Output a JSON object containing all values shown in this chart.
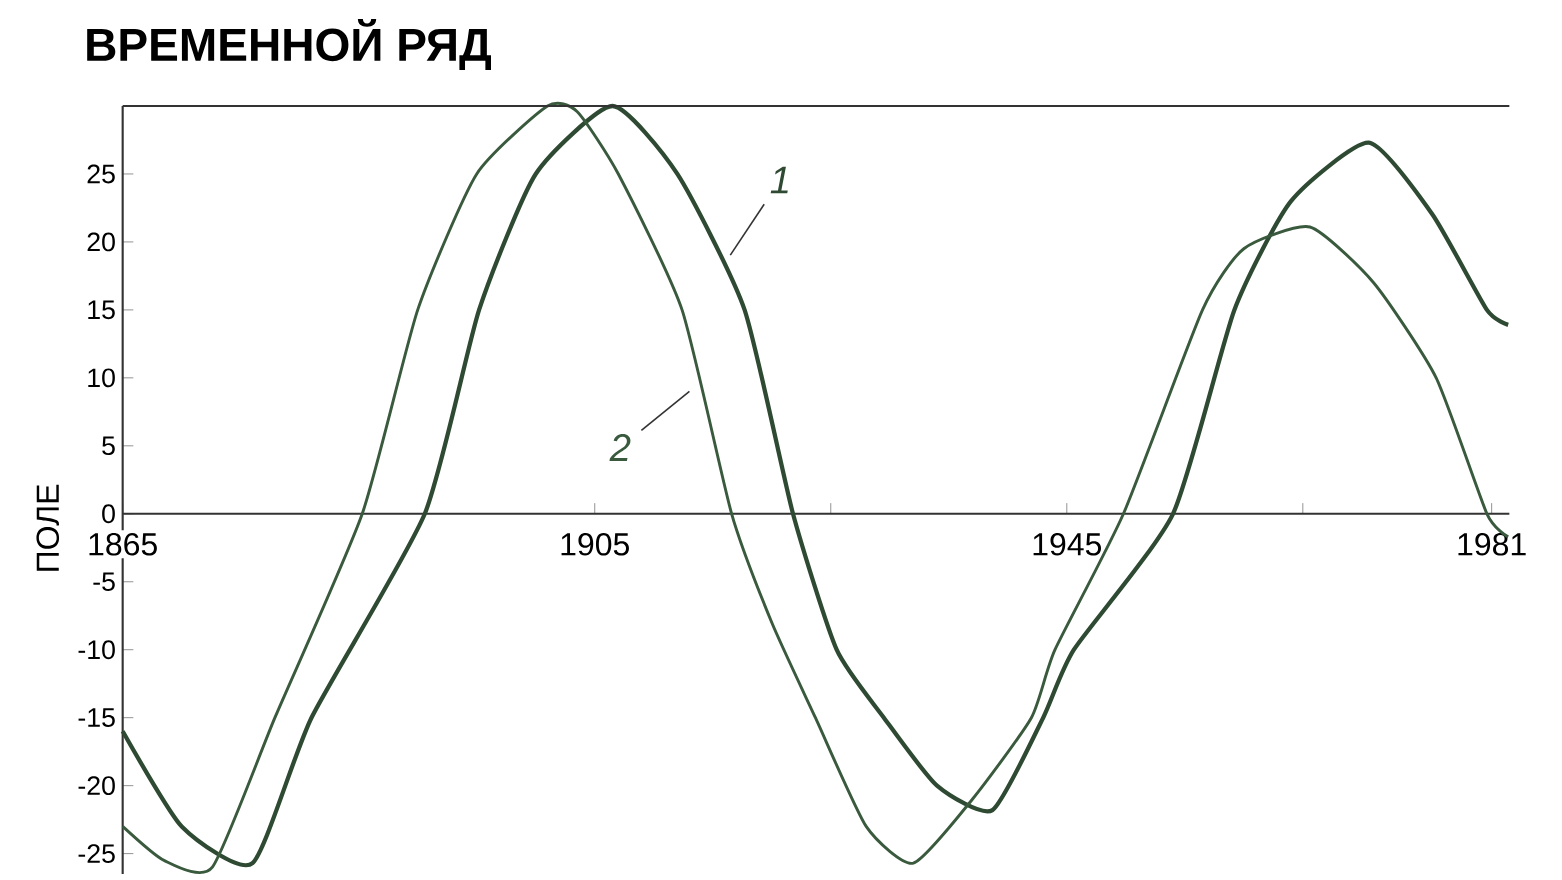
{
  "chart_data": {
    "type": "line",
    "title": "ВРЕМЕННОЙ РЯД",
    "ylabel": "ПОЛЕ",
    "xlim": [
      1865,
      1982.5
    ],
    "ylim": [
      -26.5,
      30
    ],
    "xticks": [
      1865,
      1905,
      {
        "value": 1925,
        "label": null
      },
      1945,
      {
        "value": 1965,
        "label": null
      },
      1981
    ],
    "yticks": [
      -25,
      -20,
      -15,
      -10,
      -5,
      0,
      5,
      10,
      15,
      20,
      25
    ],
    "grid": false,
    "legend": false,
    "marker": "none",
    "line_style": "solid",
    "series": [
      {
        "name": "1",
        "color": "#2f4a33",
        "x": [
          1865,
          1870,
          1876,
          1881,
          1890.6,
          1895.2,
          1900,
          1906.5,
          1912,
          1917.7,
          1921.8,
          1925.5,
          1929.5,
          1934,
          1938.7,
          1943,
          1945.6,
          1954,
          1959.2,
          1964,
          1970.6,
          1976,
          1980.6,
          1982.4
        ],
        "values": [
          -16,
          -23,
          -25.7,
          -15,
          0,
          15,
          25,
          30,
          25,
          15,
          0,
          -10,
          -15,
          -20,
          -21.8,
          -15,
          -10,
          0,
          15,
          23,
          27.3,
          22,
          15,
          13.9
        ]
      },
      {
        "name": "2",
        "color": "#3a5a3e",
        "x": [
          1865,
          1868.5,
          1872.6,
          1877.9,
          1885.3,
          1890,
          1895,
          1901,
          1903.5,
          1907,
          1912.4,
          1916.6,
          1920,
          1923.7,
          1928,
          1932,
          1937,
          1942,
          1944,
          1949.8,
          1956.5,
          1960,
          1965.6,
          1971,
          1976.3,
          1980.6,
          1982.4
        ],
        "values": [
          -23,
          -25.5,
          -26,
          -15,
          0,
          15,
          25,
          30,
          29.6,
          25,
          15,
          0,
          -8,
          -15,
          -23,
          -25.7,
          -21,
          -15,
          -10,
          0,
          15,
          19.5,
          21.1,
          17,
          10,
          0,
          -1.7
        ]
      }
    ]
  }
}
